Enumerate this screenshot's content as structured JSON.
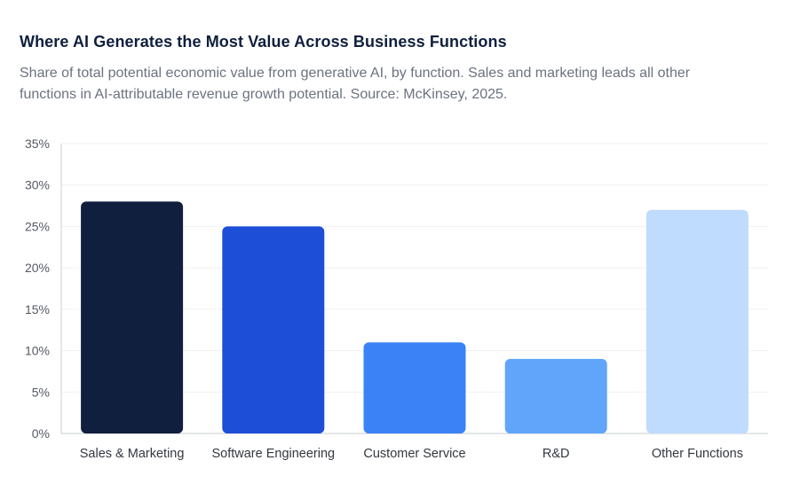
{
  "title": "Where AI Generates the Most Value Across Business Functions",
  "subtitle": "Share of total potential economic value from generative AI, by function. Sales and marketing leads all other functions in AI-attributable revenue growth potential. Source: McKinsey, 2025.",
  "chart_data": {
    "type": "bar",
    "categories": [
      "Sales & Marketing",
      "Software Engineering",
      "Customer Service",
      "R&D",
      "Other Functions"
    ],
    "values": [
      28,
      25,
      11,
      9,
      27
    ],
    "colors": [
      "#0f1f3d",
      "#1d4ed8",
      "#3b82f6",
      "#60a5fa",
      "#bfdbfe"
    ],
    "ylim": [
      0,
      35
    ],
    "yticks": [
      "0%",
      "5%",
      "10%",
      "15%",
      "20%",
      "25%",
      "30%",
      "35%"
    ],
    "ytick_values": [
      0,
      5,
      10,
      15,
      20,
      25,
      30,
      35
    ],
    "grid": true,
    "legend": "none"
  }
}
